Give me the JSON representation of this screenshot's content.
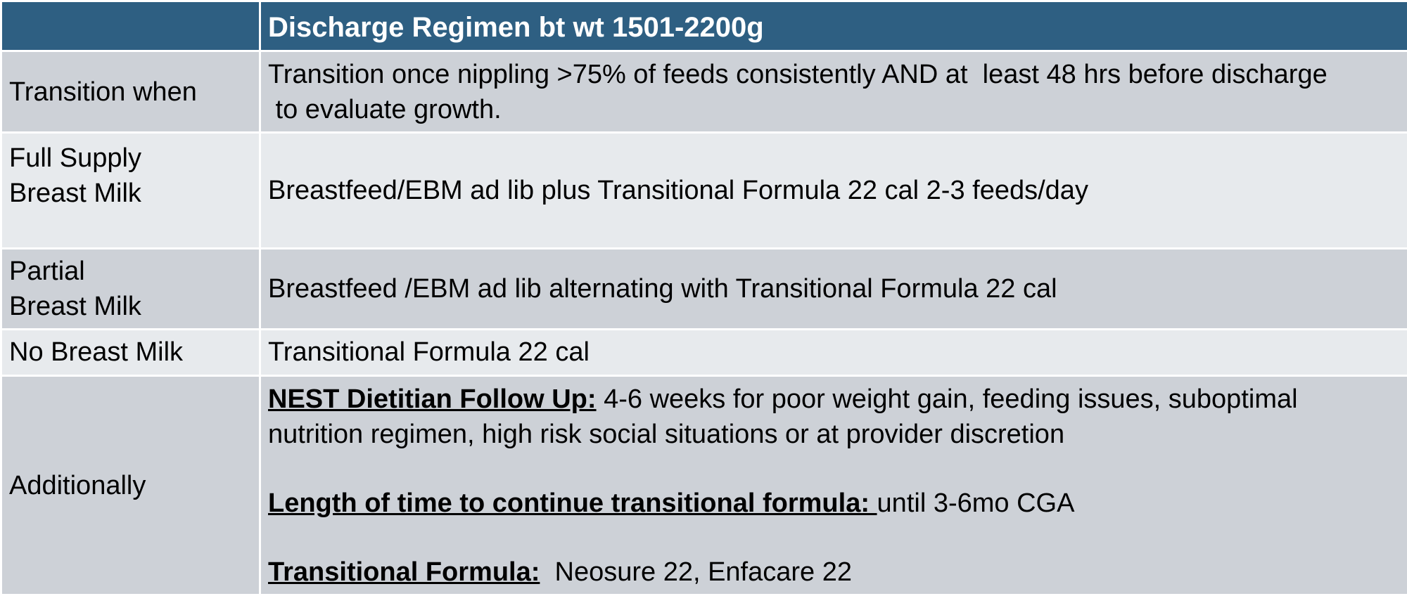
{
  "header": {
    "corner": "",
    "title": "Discharge Regimen bt wt 1501-2200g"
  },
  "rows": [
    {
      "label": "Transition when",
      "value_line1": "Transition once nippling >75% of feeds consistently AND at  least 48 hrs before discharge",
      "value_line2": " to evaluate growth."
    },
    {
      "label_line1": "Full Supply",
      "label_line2": "Breast Milk",
      "value": "Breastfeed/EBM ad lib plus Transitional Formula 22 cal 2-3 feeds/day"
    },
    {
      "label_line1": "Partial",
      "label_line2": "Breast Milk",
      "value": "Breastfeed /EBM ad lib alternating with Transitional Formula 22 cal"
    },
    {
      "label": "No Breast Milk",
      "value": "Transitional Formula 22 cal"
    },
    {
      "label": "Additionally",
      "items": [
        {
          "lead": "NEST Dietitian Follow Up:",
          "text_line1": " 4-6 weeks for poor weight gain, feeding issues, suboptimal",
          "text_line2": "nutrition regimen, high risk social situations or at provider discretion"
        },
        {
          "lead": "Length of time to continue transitional formula: ",
          "text": "until 3-6mo CGA"
        },
        {
          "lead": "Transitional Formula:",
          "text": "  Neosure 22, Enfacare 22"
        }
      ]
    }
  ]
}
